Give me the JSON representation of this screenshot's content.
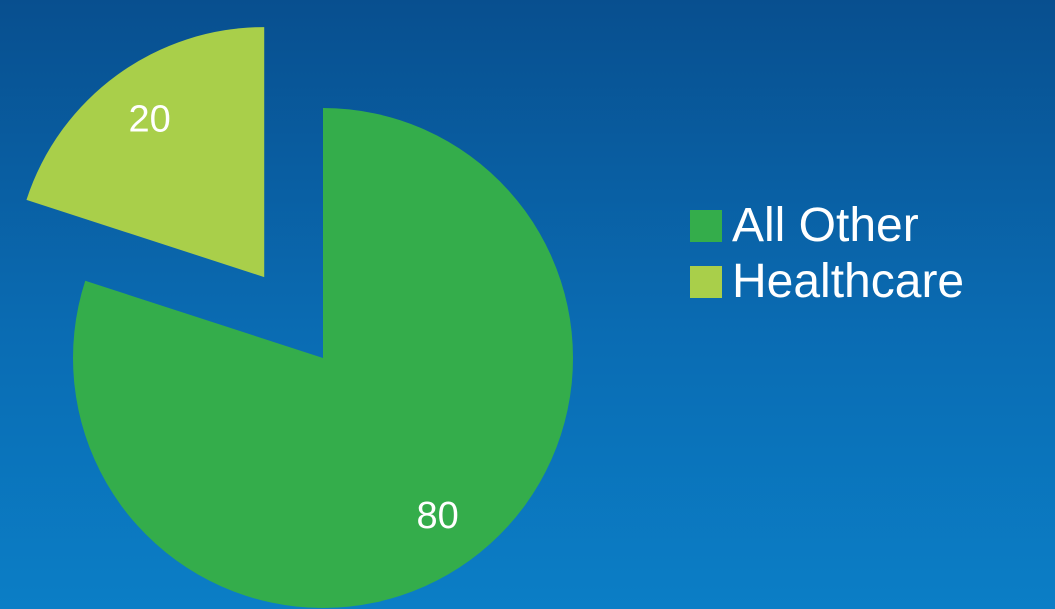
{
  "chart_data": {
    "type": "pie",
    "title": "",
    "slices": [
      {
        "label": "All Other",
        "value": 80,
        "data_label": "80",
        "color": "#34ad4b",
        "exploded": false
      },
      {
        "label": "Healthcare",
        "value": 20,
        "data_label": "20",
        "color": "#a9cf4a",
        "exploded": true
      }
    ],
    "legend_position": "right"
  }
}
